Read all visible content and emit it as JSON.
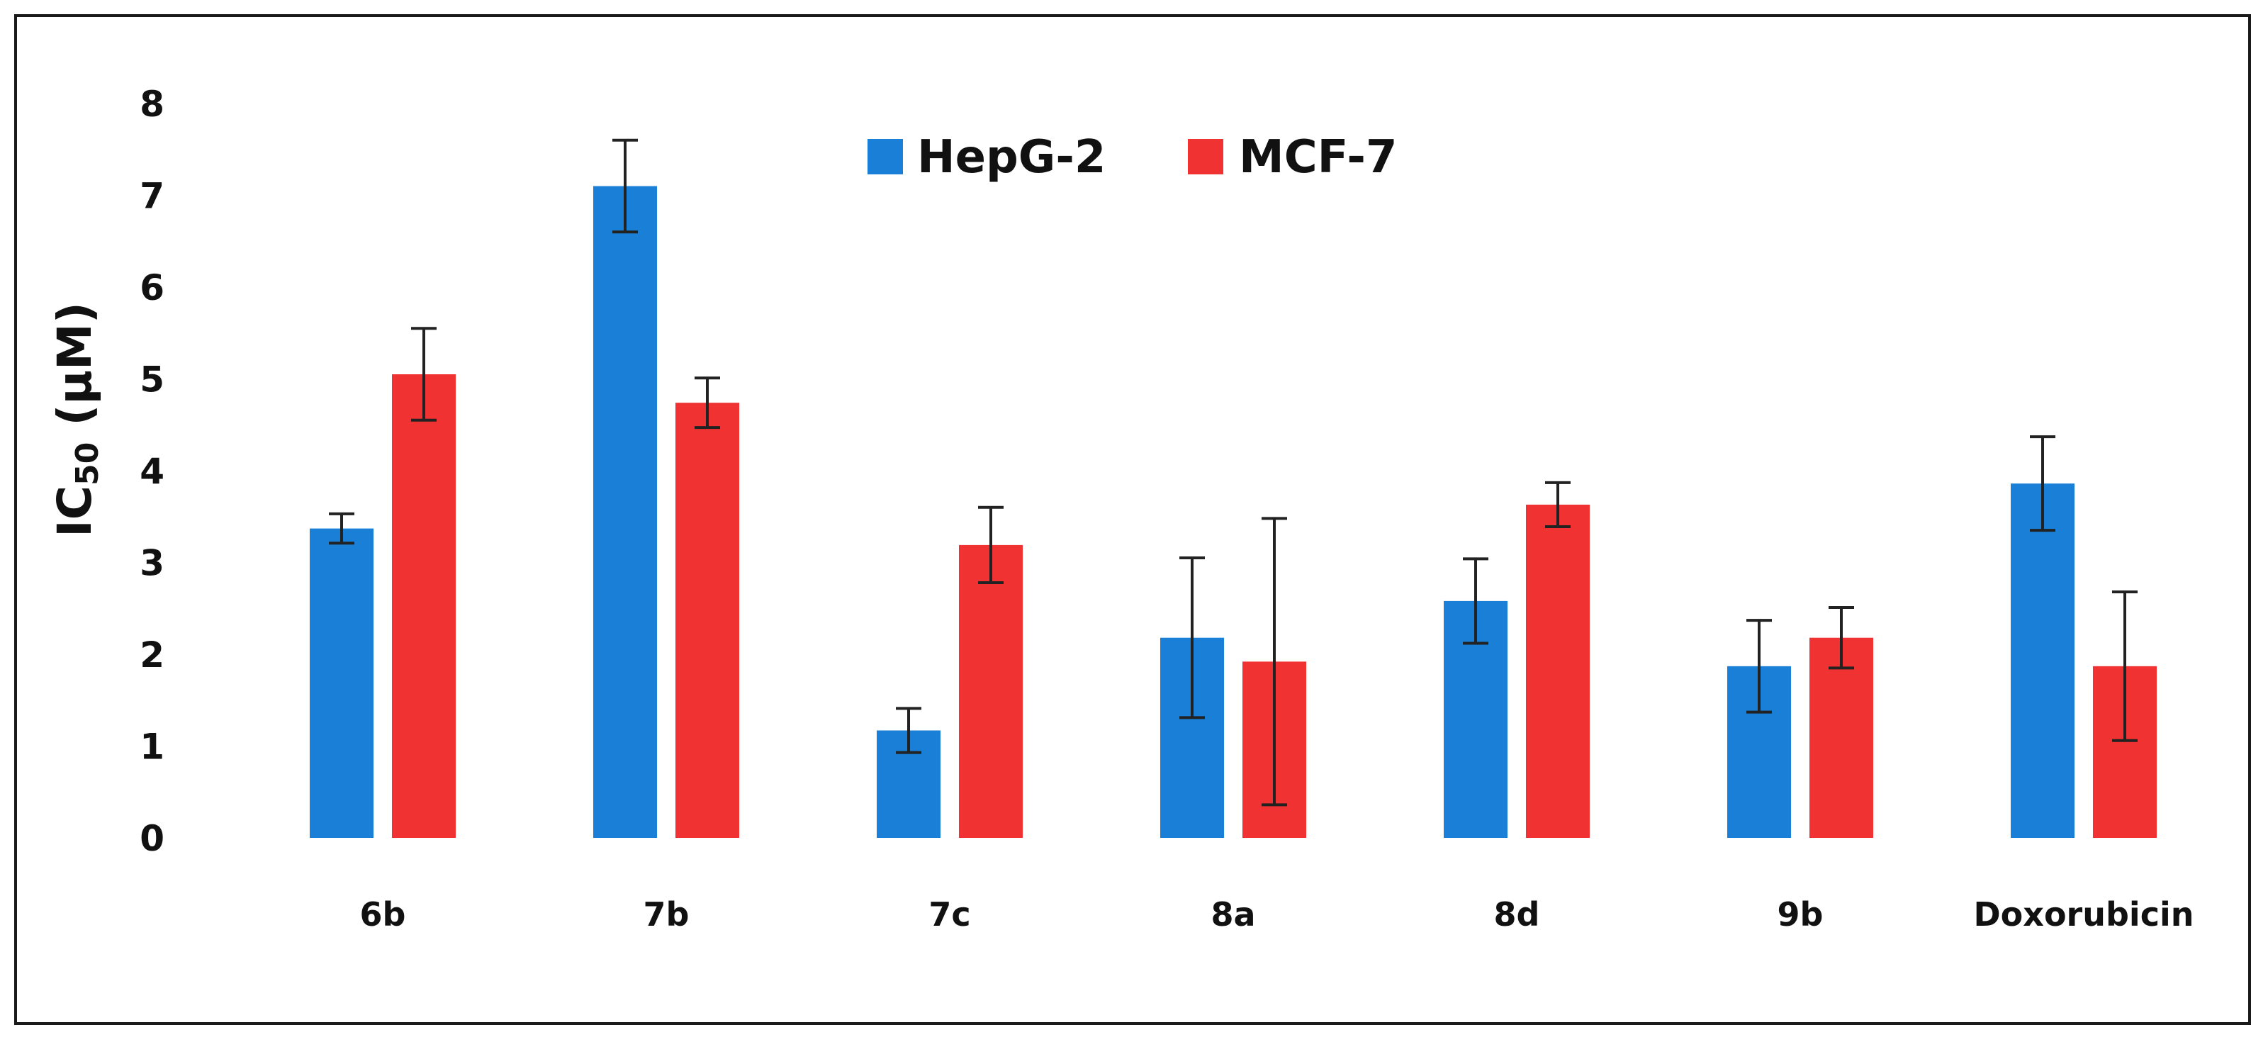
{
  "chart_data": {
    "type": "bar",
    "title": "",
    "xlabel": "",
    "ylabel": "IC50 (µM)",
    "ylabel_main": "IC",
    "ylabel_sub": "50",
    "ylabel_unit": " (µM)",
    "ylim": [
      0,
      8
    ],
    "yticks": [
      0,
      1,
      2,
      3,
      4,
      5,
      6,
      7,
      8
    ],
    "grid": false,
    "legend_position": "top-center",
    "categories": [
      "6b",
      "7b",
      "7c",
      "8a",
      "8d",
      "9b",
      "Doxorubicin"
    ],
    "series": [
      {
        "name": "HepG-2",
        "color": "#1a7fd6",
        "values": [
          3.37,
          7.1,
          1.17,
          2.18,
          2.58,
          1.87,
          3.86
        ],
        "errors": [
          0.16,
          0.5,
          0.24,
          0.87,
          0.46,
          0.5,
          0.51
        ]
      },
      {
        "name": "MCF-7",
        "color": "#f03232",
        "values": [
          5.05,
          4.74,
          3.19,
          1.92,
          3.63,
          2.18,
          1.87
        ],
        "errors": [
          0.5,
          0.27,
          0.41,
          1.56,
          0.24,
          0.33,
          0.81
        ]
      }
    ]
  }
}
